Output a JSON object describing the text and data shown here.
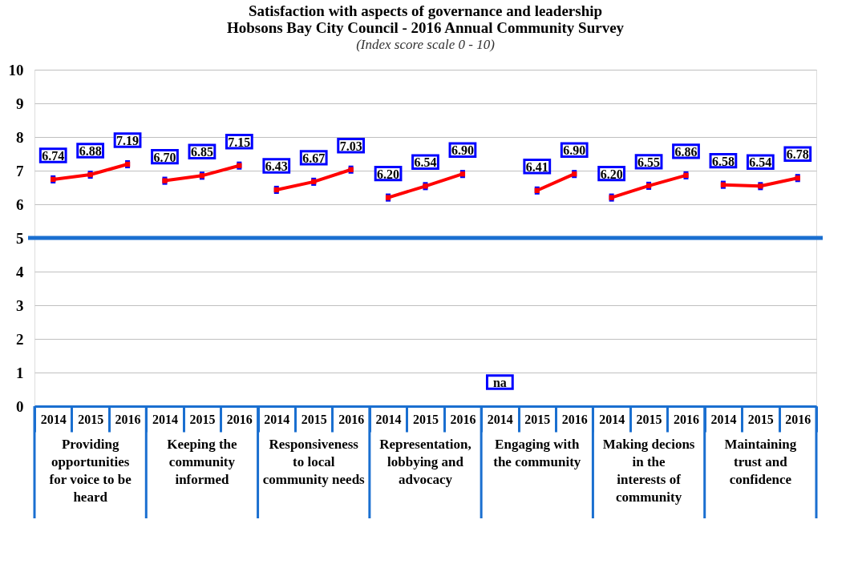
{
  "chart_data": {
    "type": "line",
    "title": "Satisfaction with aspects of governance and leadership\nHobsons Bay City Council - 2016 Annual Community Survey",
    "subtitle": "(Index score scale 0 - 10)",
    "categories": [
      "2014",
      "2015",
      "2016",
      "2014",
      "2015",
      "2016",
      "2014",
      "2015",
      "2016",
      "2014",
      "2015",
      "2016",
      "2014",
      "2015",
      "2016",
      "2014",
      "2015",
      "2016",
      "2014",
      "2015",
      "2016"
    ],
    "series": [
      {
        "color": "#ff0000",
        "values": [
          6.74,
          6.88,
          7.19,
          6.7,
          6.85,
          7.15,
          6.43,
          6.67,
          7.03,
          6.2,
          6.54,
          6.9,
          null,
          6.41,
          6.9,
          6.2,
          6.55,
          6.86,
          6.58,
          6.54,
          6.78
        ],
        "errors": [
          0.12,
          0.12,
          0.12,
          0.12,
          0.12,
          0.12,
          0.12,
          0.12,
          0.12,
          0.12,
          0.12,
          0.12,
          null,
          0.12,
          0.12,
          0.12,
          0.12,
          0.12,
          0.12,
          0.12,
          0.12
        ],
        "value_labels": [
          "6.74",
          "6.88",
          "7.19",
          "6.70",
          "6.85",
          "7.15",
          "6.43",
          "6.67",
          "7.03",
          "6.20",
          "6.54",
          "6.90",
          "na",
          "6.41",
          "6.90",
          "6.20",
          "6.55",
          "6.86",
          "6.58",
          "6.54",
          "6.78"
        ]
      }
    ],
    "annotations": [
      "Providing opportunities for voice to be heard",
      "Keeping the community informed",
      "Responsiveness to local community needs",
      "Representation, lobbying and advocacy",
      "Engaging with the community",
      "Making decions in the interests of community",
      "Maintaining trust and confidence"
    ],
    "ylim": [
      0,
      10
    ],
    "yticks": [
      0,
      1,
      2,
      3,
      4,
      5,
      6,
      7,
      8,
      9,
      10
    ],
    "grid": "y",
    "marker": "square",
    "ref_lines": [
      {
        "axis": "y",
        "value": 5,
        "color": "#1a6fd0"
      }
    ]
  }
}
